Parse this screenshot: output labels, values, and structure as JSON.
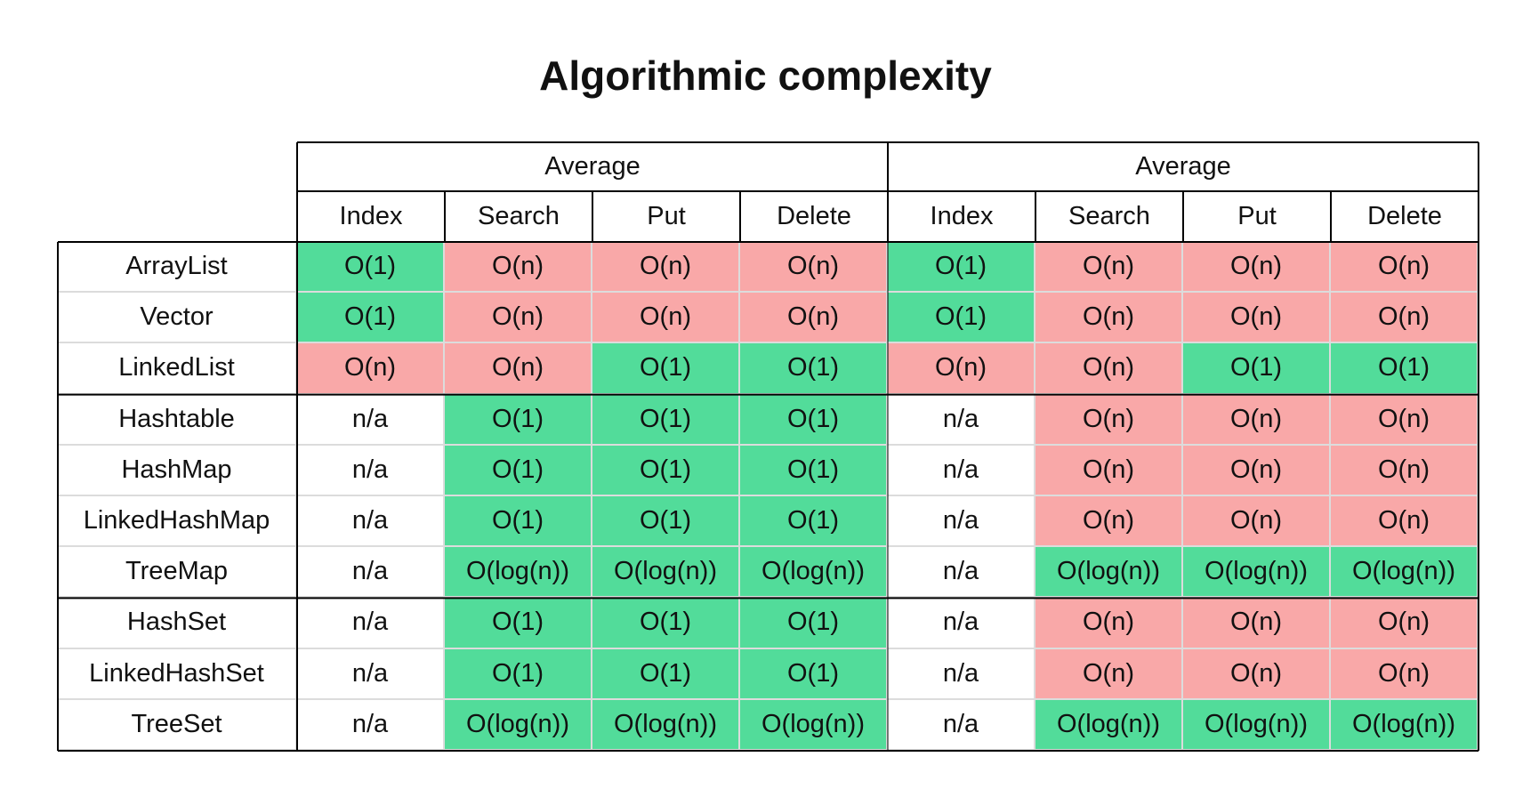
{
  "header": {
    "title": "Algorithmic complexity"
  },
  "table": {
    "groups": [
      "Average",
      "Average"
    ],
    "columns": [
      "Index",
      "Search",
      "Put",
      "Delete",
      "Index",
      "Search",
      "Put",
      "Delete"
    ],
    "row_groups": [
      {
        "rows": [
          {
            "label": "ArrayList",
            "cells": [
              {
                "text": "O(1)",
                "fill": "#52dc9a"
              },
              {
                "text": "O(n)",
                "fill": "#f9a8a8"
              },
              {
                "text": "O(n)",
                "fill": "#f9a8a8"
              },
              {
                "text": "O(n)",
                "fill": "#f9a8a8"
              },
              {
                "text": "O(1)",
                "fill": "#52dc9a"
              },
              {
                "text": "O(n)",
                "fill": "#f9a8a8"
              },
              {
                "text": "O(n)",
                "fill": "#f9a8a8"
              },
              {
                "text": "O(n)",
                "fill": "#f9a8a8"
              }
            ]
          },
          {
            "label": "Vector",
            "cells": [
              {
                "text": "O(1)",
                "fill": "#52dc9a"
              },
              {
                "text": "O(n)",
                "fill": "#f9a8a8"
              },
              {
                "text": "O(n)",
                "fill": "#f9a8a8"
              },
              {
                "text": "O(n)",
                "fill": "#f9a8a8"
              },
              {
                "text": "O(1)",
                "fill": "#52dc9a"
              },
              {
                "text": "O(n)",
                "fill": "#f9a8a8"
              },
              {
                "text": "O(n)",
                "fill": "#f9a8a8"
              },
              {
                "text": "O(n)",
                "fill": "#f9a8a8"
              }
            ]
          },
          {
            "label": "LinkedList",
            "cells": [
              {
                "text": "O(n)",
                "fill": "#f9a8a8"
              },
              {
                "text": "O(n)",
                "fill": "#f9a8a8"
              },
              {
                "text": "O(1)",
                "fill": "#52dc9a"
              },
              {
                "text": "O(1)",
                "fill": "#52dc9a"
              },
              {
                "text": "O(n)",
                "fill": "#f9a8a8"
              },
              {
                "text": "O(n)",
                "fill": "#f9a8a8"
              },
              {
                "text": "O(1)",
                "fill": "#52dc9a"
              },
              {
                "text": "O(1)",
                "fill": "#52dc9a"
              }
            ]
          }
        ]
      },
      {
        "rows": [
          {
            "label": "Hashtable",
            "cells": [
              {
                "text": "n/a",
                "fill": "#ffffff"
              },
              {
                "text": "O(1)",
                "fill": "#52dc9a"
              },
              {
                "text": "O(1)",
                "fill": "#52dc9a"
              },
              {
                "text": "O(1)",
                "fill": "#52dc9a"
              },
              {
                "text": "n/a",
                "fill": "#ffffff"
              },
              {
                "text": "O(n)",
                "fill": "#f9a8a8"
              },
              {
                "text": "O(n)",
                "fill": "#f9a8a8"
              },
              {
                "text": "O(n)",
                "fill": "#f9a8a8"
              }
            ]
          },
          {
            "label": "HashMap",
            "cells": [
              {
                "text": "n/a",
                "fill": "#ffffff"
              },
              {
                "text": "O(1)",
                "fill": "#52dc9a"
              },
              {
                "text": "O(1)",
                "fill": "#52dc9a"
              },
              {
                "text": "O(1)",
                "fill": "#52dc9a"
              },
              {
                "text": "n/a",
                "fill": "#ffffff"
              },
              {
                "text": "O(n)",
                "fill": "#f9a8a8"
              },
              {
                "text": "O(n)",
                "fill": "#f9a8a8"
              },
              {
                "text": "O(n)",
                "fill": "#f9a8a8"
              }
            ]
          },
          {
            "label": "LinkedHashMap",
            "cells": [
              {
                "text": "n/a",
                "fill": "#ffffff"
              },
              {
                "text": "O(1)",
                "fill": "#52dc9a"
              },
              {
                "text": "O(1)",
                "fill": "#52dc9a"
              },
              {
                "text": "O(1)",
                "fill": "#52dc9a"
              },
              {
                "text": "n/a",
                "fill": "#ffffff"
              },
              {
                "text": "O(n)",
                "fill": "#f9a8a8"
              },
              {
                "text": "O(n)",
                "fill": "#f9a8a8"
              },
              {
                "text": "O(n)",
                "fill": "#f9a8a8"
              }
            ]
          },
          {
            "label": "TreeMap",
            "cells": [
              {
                "text": "n/a",
                "fill": "#ffffff"
              },
              {
                "text": "O(log(n))",
                "fill": "#52dc9a"
              },
              {
                "text": "O(log(n))",
                "fill": "#52dc9a"
              },
              {
                "text": "O(log(n))",
                "fill": "#52dc9a"
              },
              {
                "text": "n/a",
                "fill": "#ffffff"
              },
              {
                "text": "O(log(n))",
                "fill": "#52dc9a"
              },
              {
                "text": "O(log(n))",
                "fill": "#52dc9a"
              },
              {
                "text": "O(log(n))",
                "fill": "#52dc9a"
              }
            ]
          }
        ]
      },
      {
        "rows": [
          {
            "label": "HashSet",
            "cells": [
              {
                "text": "n/a",
                "fill": "#ffffff"
              },
              {
                "text": "O(1)",
                "fill": "#52dc9a"
              },
              {
                "text": "O(1)",
                "fill": "#52dc9a"
              },
              {
                "text": "O(1)",
                "fill": "#52dc9a"
              },
              {
                "text": "n/a",
                "fill": "#ffffff"
              },
              {
                "text": "O(n)",
                "fill": "#f9a8a8"
              },
              {
                "text": "O(n)",
                "fill": "#f9a8a8"
              },
              {
                "text": "O(n)",
                "fill": "#f9a8a8"
              }
            ]
          },
          {
            "label": "LinkedHashSet",
            "cells": [
              {
                "text": "n/a",
                "fill": "#ffffff"
              },
              {
                "text": "O(1)",
                "fill": "#52dc9a"
              },
              {
                "text": "O(1)",
                "fill": "#52dc9a"
              },
              {
                "text": "O(1)",
                "fill": "#52dc9a"
              },
              {
                "text": "n/a",
                "fill": "#ffffff"
              },
              {
                "text": "O(n)",
                "fill": "#f9a8a8"
              },
              {
                "text": "O(n)",
                "fill": "#f9a8a8"
              },
              {
                "text": "O(n)",
                "fill": "#f9a8a8"
              }
            ]
          },
          {
            "label": "TreeSet",
            "cells": [
              {
                "text": "n/a",
                "fill": "#ffffff"
              },
              {
                "text": "O(log(n))",
                "fill": "#52dc9a"
              },
              {
                "text": "O(log(n))",
                "fill": "#52dc9a"
              },
              {
                "text": "O(log(n))",
                "fill": "#52dc9a"
              },
              {
                "text": "n/a",
                "fill": "#ffffff"
              },
              {
                "text": "O(log(n))",
                "fill": "#52dc9a"
              },
              {
                "text": "O(log(n))",
                "fill": "#52dc9a"
              },
              {
                "text": "O(log(n))",
                "fill": "#52dc9a"
              }
            ]
          }
        ]
      }
    ]
  }
}
